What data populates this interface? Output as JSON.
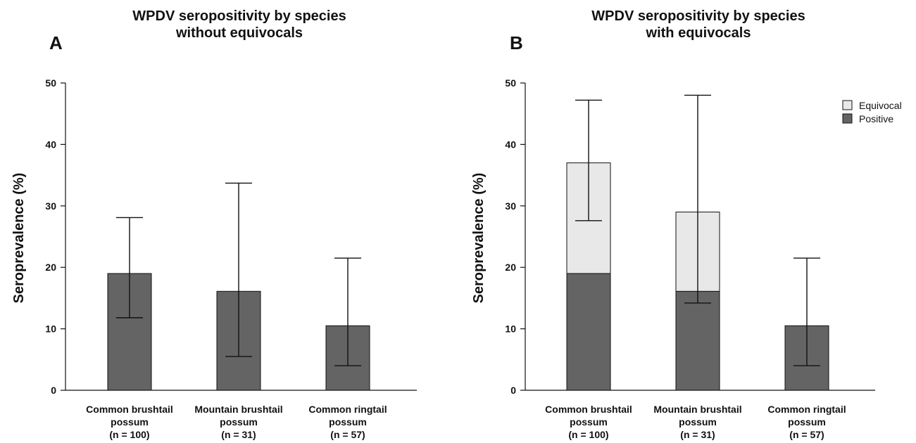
{
  "colors": {
    "positive": "#646464",
    "equivocal": "#e8e8e8",
    "stroke": "#111111"
  },
  "chart_data": [
    {
      "panel": "A",
      "type": "bar",
      "title": [
        "WPDV seropositivity by species",
        "without equivocals"
      ],
      "ylabel": "Seroprevalence (%)",
      "ylim": [
        0,
        50
      ],
      "yticks": [
        0,
        10,
        20,
        30,
        40,
        50
      ],
      "categories": [
        [
          "Common brushtail",
          "possum",
          "(n = 100)"
        ],
        [
          "Mountain brushtail",
          "possum",
          "(n = 31)"
        ],
        [
          "Common ringtail",
          "possum",
          "(n = 57)"
        ]
      ],
      "series": [
        {
          "name": "Positive",
          "values": [
            19.0,
            16.1,
            10.5
          ]
        }
      ],
      "error_bars": [
        {
          "low": 11.8,
          "high": 28.1
        },
        {
          "low": 5.5,
          "high": 33.7
        },
        {
          "low": 4.0,
          "high": 21.5
        }
      ],
      "legend": null
    },
    {
      "panel": "B",
      "type": "bar",
      "stacked": true,
      "title": [
        "WPDV seropositivity by species",
        "with equivocals"
      ],
      "ylabel": "Seroprevalence (%)",
      "ylim": [
        0,
        50
      ],
      "yticks": [
        0,
        10,
        20,
        30,
        40,
        50
      ],
      "categories": [
        [
          "Common brushtail",
          "possum",
          "(n = 100)"
        ],
        [
          "Mountain brushtail",
          "possum",
          "(n = 31)"
        ],
        [
          "Common ringtail",
          "possum",
          "(n = 57)"
        ]
      ],
      "series": [
        {
          "name": "Positive",
          "values": [
            19.0,
            16.1,
            10.5
          ]
        },
        {
          "name": "Equivocal",
          "values": [
            18.0,
            12.9,
            0
          ]
        }
      ],
      "error_bars": [
        {
          "low": 27.6,
          "high": 47.2
        },
        {
          "low": 14.2,
          "high": 48.0
        },
        {
          "low": 4.0,
          "high": 21.5
        }
      ],
      "legend": {
        "position": "top-right",
        "entries": [
          "Equivocal",
          "Positive"
        ]
      }
    }
  ]
}
